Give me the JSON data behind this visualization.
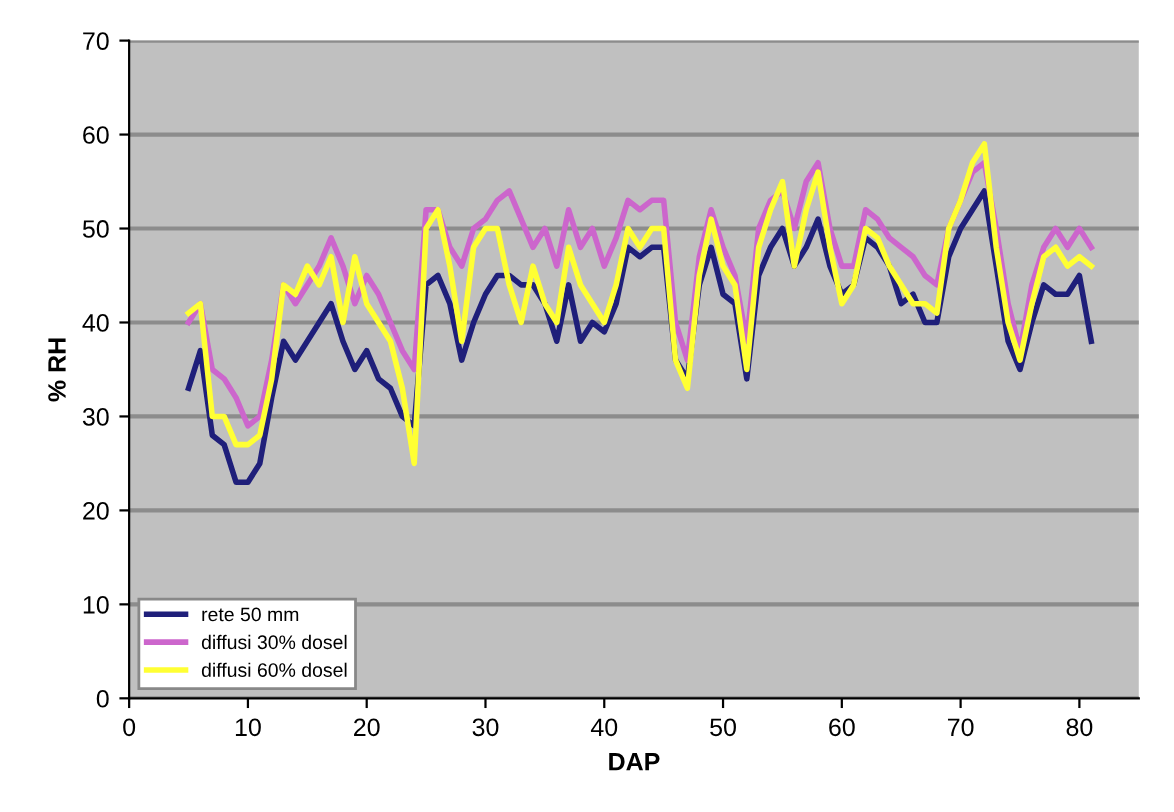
{
  "chart_data": {
    "type": "line",
    "xlabel": "DAP",
    "ylabel": "% RH",
    "xlim": [
      0,
      85
    ],
    "xticks": [
      0,
      10,
      20,
      30,
      40,
      50,
      60,
      70,
      80
    ],
    "ylim": [
      0,
      70
    ],
    "yticks": [
      0,
      10,
      20,
      30,
      40,
      50,
      60,
      70
    ],
    "grid": "y",
    "legend": "bottom left",
    "marker": "none",
    "line_style": "solid",
    "x": [
      5,
      6,
      7,
      8,
      9,
      10,
      11,
      12,
      13,
      14,
      15,
      16,
      17,
      18,
      19,
      20,
      21,
      22,
      23,
      24,
      25,
      26,
      27,
      28,
      29,
      30,
      31,
      32,
      33,
      34,
      35,
      36,
      37,
      38,
      39,
      40,
      41,
      42,
      43,
      44,
      45,
      46,
      47,
      48,
      49,
      50,
      51,
      52,
      53,
      54,
      55,
      56,
      57,
      58,
      59,
      60,
      61,
      62,
      63,
      64,
      65,
      66,
      67,
      68,
      69,
      70,
      71,
      72,
      73,
      74,
      75,
      76,
      77,
      78,
      79,
      80,
      81
    ],
    "series": [
      {
        "name": "rete 50 mm",
        "color": "#1f1f7a",
        "values": [
          33,
          37,
          28,
          27,
          23,
          23,
          25,
          32,
          38,
          36,
          38,
          40,
          42,
          38,
          35,
          37,
          34,
          33,
          30,
          29,
          44,
          45,
          42,
          36,
          40,
          43,
          45,
          45,
          44,
          44,
          42,
          38,
          44,
          38,
          40,
          39,
          42,
          48,
          47,
          48,
          48,
          36,
          34,
          44,
          48,
          43,
          42,
          34,
          45,
          48,
          50,
          46,
          48,
          51,
          46,
          43,
          44,
          49,
          48,
          46,
          42,
          43,
          40,
          40,
          47,
          50,
          52,
          54,
          46,
          38,
          35,
          40,
          44,
          43,
          43,
          45,
          38
        ]
      },
      {
        "name": "diffusi 30% dosel",
        "color": "#cc66cc",
        "values": [
          40,
          42,
          35,
          34,
          32,
          29,
          30,
          36,
          44,
          42,
          44,
          46,
          49,
          46,
          42,
          45,
          43,
          40,
          37,
          35,
          52,
          52,
          48,
          46,
          50,
          51,
          53,
          54,
          51,
          48,
          50,
          46,
          52,
          48,
          50,
          46,
          49,
          53,
          52,
          53,
          53,
          40,
          36,
          47,
          52,
          48,
          45,
          38,
          50,
          53,
          54,
          50,
          55,
          57,
          50,
          46,
          46,
          52,
          51,
          49,
          48,
          47,
          45,
          44,
          50,
          53,
          56,
          57,
          50,
          42,
          37,
          44,
          48,
          50,
          48,
          50,
          48
        ]
      },
      {
        "name": "diffusi 60% dosel",
        "color": "#ffff33",
        "values": [
          41,
          42,
          30,
          30,
          27,
          27,
          28,
          34,
          44,
          43,
          46,
          44,
          47,
          40,
          47,
          42,
          40,
          38,
          33,
          25,
          50,
          52,
          46,
          38,
          48,
          50,
          50,
          44,
          40,
          46,
          42,
          40,
          48,
          44,
          42,
          40,
          44,
          50,
          48,
          50,
          50,
          36,
          33,
          45,
          51,
          46,
          44,
          35,
          48,
          52,
          55,
          46,
          52,
          56,
          48,
          42,
          44,
          50,
          49,
          46,
          44,
          42,
          42,
          41,
          50,
          53,
          57,
          59,
          48,
          40,
          36,
          42,
          47,
          48,
          46,
          47,
          46
        ]
      }
    ]
  }
}
